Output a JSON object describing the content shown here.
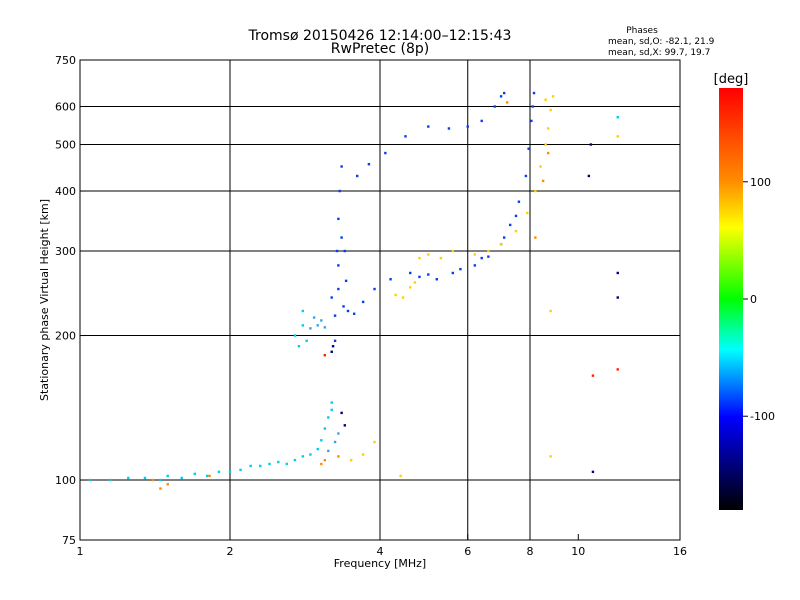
{
  "chart_data": {
    "type": "scatter",
    "title": "Tromsø 20150426 12:14:00–12:15:43",
    "subtitle": "RwPretec (8p)",
    "xlabel": "Frequency [MHz]",
    "ylabel": "Stationary phase Virtual Height [km]",
    "xscale": "log",
    "yscale": "log",
    "xlim": [
      1,
      16
    ],
    "ylim": [
      75,
      750
    ],
    "x_ticks": [
      1,
      2,
      4,
      6,
      8,
      10,
      16
    ],
    "y_ticks": [
      75,
      100,
      200,
      300,
      400,
      500,
      600,
      750
    ],
    "x_grid": [
      2,
      4,
      6,
      8
    ],
    "y_grid": [
      100,
      200,
      300,
      400,
      500,
      600
    ],
    "grid": true,
    "legend_position": "top-right",
    "phase_stats": {
      "title": "Phases",
      "line_o": "mean, sd,O: -82.1, 21.9",
      "line_x": "mean, sd,X:  99.7, 19.7"
    },
    "colorbar": {
      "label": "[deg]",
      "range": [
        -180,
        180
      ],
      "ticks": [
        100,
        0,
        -100
      ],
      "colors": [
        "#ff0000",
        "#ff8c00",
        "#ffff00",
        "#00ff00",
        "#00ffff",
        "#0000ff",
        "#000000"
      ]
    },
    "series": [
      {
        "color": "#00ccee",
        "points": [
          [
            1.05,
            100
          ],
          [
            1.15,
            100
          ],
          [
            1.25,
            101
          ],
          [
            1.35,
            101
          ],
          [
            1.45,
            100
          ],
          [
            1.5,
            102
          ],
          [
            1.6,
            101
          ],
          [
            1.7,
            103
          ],
          [
            1.8,
            102
          ],
          [
            1.9,
            104
          ],
          [
            2.0,
            104
          ],
          [
            2.1,
            105
          ],
          [
            2.2,
            107
          ],
          [
            2.3,
            107
          ],
          [
            2.4,
            108
          ],
          [
            2.5,
            109
          ],
          [
            2.6,
            108
          ],
          [
            2.7,
            110
          ],
          [
            2.8,
            112
          ],
          [
            2.9,
            113
          ],
          [
            3.0,
            116
          ],
          [
            3.05,
            121
          ],
          [
            3.1,
            128
          ],
          [
            3.15,
            135
          ],
          [
            3.2,
            140
          ],
          [
            3.2,
            145
          ],
          [
            2.7,
            200
          ],
          [
            2.75,
            190
          ],
          [
            2.8,
            210
          ],
          [
            2.85,
            195
          ],
          [
            2.8,
            225
          ],
          [
            12.0,
            570
          ]
        ]
      },
      {
        "color": "#3ca0e8",
        "points": [
          [
            2.9,
            207
          ],
          [
            3.0,
            210
          ],
          [
            3.05,
            215
          ],
          [
            3.1,
            208
          ],
          [
            2.95,
            218
          ],
          [
            3.25,
            120
          ],
          [
            3.3,
            125
          ],
          [
            3.15,
            115
          ]
        ]
      },
      {
        "color": "#0040ee",
        "points": [
          [
            3.25,
            195
          ],
          [
            3.25,
            220
          ],
          [
            3.3,
            250
          ],
          [
            3.28,
            300
          ],
          [
            3.3,
            350
          ],
          [
            3.32,
            400
          ],
          [
            3.35,
            450
          ],
          [
            3.38,
            230
          ],
          [
            3.45,
            225
          ],
          [
            3.55,
            222
          ],
          [
            3.7,
            235
          ],
          [
            3.9,
            250
          ],
          [
            4.2,
            262
          ],
          [
            4.6,
            270
          ],
          [
            5.0,
            268
          ],
          [
            5.6,
            270
          ],
          [
            6.2,
            280
          ],
          [
            6.6,
            292
          ],
          [
            7.0,
            310
          ],
          [
            7.3,
            340
          ],
          [
            7.6,
            380
          ],
          [
            7.85,
            430
          ],
          [
            7.95,
            490
          ],
          [
            8.05,
            560
          ],
          [
            8.1,
            600
          ],
          [
            8.15,
            640
          ],
          [
            3.2,
            240
          ],
          [
            3.3,
            280
          ],
          [
            3.35,
            320
          ],
          [
            3.4,
            300
          ],
          [
            3.42,
            260
          ],
          [
            3.6,
            430
          ],
          [
            3.8,
            455
          ],
          [
            4.1,
            480
          ],
          [
            4.5,
            520
          ],
          [
            5.0,
            545
          ],
          [
            5.5,
            540
          ],
          [
            6.0,
            545
          ],
          [
            6.4,
            560
          ],
          [
            6.8,
            600
          ],
          [
            7.0,
            630
          ],
          [
            7.1,
            640
          ],
          [
            4.8,
            265
          ],
          [
            5.2,
            262
          ],
          [
            5.8,
            275
          ],
          [
            6.4,
            290
          ],
          [
            7.1,
            320
          ],
          [
            7.5,
            355
          ]
        ]
      },
      {
        "color": "#000080",
        "points": [
          [
            3.2,
            185
          ],
          [
            3.22,
            190
          ],
          [
            3.35,
            138
          ],
          [
            3.4,
            130
          ],
          [
            10.5,
            430
          ],
          [
            10.6,
            500
          ],
          [
            10.7,
            104
          ],
          [
            12.0,
            240
          ],
          [
            12.0,
            270
          ]
        ]
      },
      {
        "color": "#ffd000",
        "points": [
          [
            4.3,
            243
          ],
          [
            4.45,
            240
          ],
          [
            4.6,
            252
          ],
          [
            4.7,
            258
          ],
          [
            4.8,
            290
          ],
          [
            5.0,
            295
          ],
          [
            5.3,
            290
          ],
          [
            5.6,
            300
          ],
          [
            6.2,
            295
          ],
          [
            6.6,
            300
          ],
          [
            7.0,
            310
          ],
          [
            7.5,
            330
          ],
          [
            7.9,
            360
          ],
          [
            8.2,
            400
          ],
          [
            8.4,
            450
          ],
          [
            8.6,
            500
          ],
          [
            8.7,
            540
          ],
          [
            8.8,
            590
          ],
          [
            8.9,
            630
          ],
          [
            3.5,
            110
          ],
          [
            3.7,
            113
          ],
          [
            3.9,
            120
          ],
          [
            4.4,
            102
          ],
          [
            8.8,
            112
          ],
          [
            8.8,
            225
          ],
          [
            8.6,
            620
          ],
          [
            12.0,
            520
          ]
        ]
      },
      {
        "color": "#ff8c00",
        "points": [
          [
            1.4,
            100
          ],
          [
            1.45,
            96
          ],
          [
            1.5,
            98
          ],
          [
            1.82,
            102
          ],
          [
            3.05,
            108
          ],
          [
            3.1,
            110
          ],
          [
            3.3,
            112
          ],
          [
            7.2,
            612
          ],
          [
            8.2,
            320
          ],
          [
            8.5,
            420
          ],
          [
            8.7,
            480
          ]
        ]
      },
      {
        "color": "#ff2000",
        "points": [
          [
            3.1,
            182
          ],
          [
            10.7,
            165
          ],
          [
            12.0,
            170
          ]
        ]
      }
    ]
  }
}
